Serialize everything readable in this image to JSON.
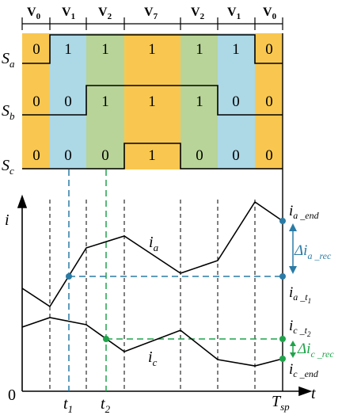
{
  "colors": {
    "v0": "#f9c74f",
    "v1": "#add8e6",
    "v2": "#b8d498",
    "v7": "#f9c74f",
    "blue": "#2a7ba6",
    "green": "#1fa34a",
    "black": "#000000"
  },
  "vectors": {
    "v0": "V",
    "v0_sub": "0",
    "v1": "V",
    "v1_sub": "1",
    "v2": "V",
    "v2_sub": "2",
    "v7": "V",
    "v7_sub": "7"
  },
  "switches": {
    "sa": "S",
    "sa_sub": "a",
    "sb": "S",
    "sb_sub": "b",
    "sc": "S",
    "sc_sub": "c"
  },
  "states": {
    "a": [
      "0",
      "1",
      "1",
      "1",
      "1",
      "1",
      "0"
    ],
    "b": [
      "0",
      "0",
      "1",
      "1",
      "1",
      "0",
      "0"
    ],
    "c": [
      "0",
      "0",
      "0",
      "1",
      "0",
      "0",
      "0"
    ]
  },
  "plot": {
    "y_axis": "i",
    "x_axis": "t",
    "origin": "0",
    "t1": "t",
    "t1_sub": "1",
    "t2": "t",
    "t2_sub": "2",
    "tsp": "T",
    "tsp_sub": "sp"
  },
  "curves": {
    "ia": "i",
    "ia_sub": "a",
    "ic": "i",
    "ic_sub": "c"
  },
  "annotations": {
    "ia_end": "i",
    "ia_end_sub": "a _end",
    "delta_ia": "Δi",
    "delta_ia_sub": "a _rec",
    "ia_t1": "i",
    "ia_t1_sub": "a _t",
    "ia_t1_subsub": "1",
    "ic_t2": "i",
    "ic_t2_sub": "c _t",
    "ic_t2_subsub": "2",
    "delta_ic": "Δi",
    "delta_ic_sub": "c _rec",
    "ic_end": "i",
    "ic_end_sub": "c _end"
  }
}
